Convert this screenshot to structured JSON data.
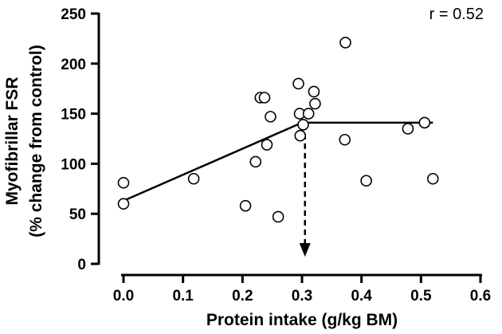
{
  "chart_data": {
    "type": "scatter",
    "title": "",
    "xlabel": "Protein intake (g/kg BM)",
    "ylabel_line1": "Myofibrillar FSR",
    "ylabel_line2": "(% change from control)",
    "xlim": [
      0.0,
      0.6
    ],
    "ylim": [
      0,
      250
    ],
    "x_ticks": [
      "0.0",
      "0.1",
      "0.2",
      "0.3",
      "0.4",
      "0.5",
      "0.6"
    ],
    "y_ticks": [
      "0",
      "50",
      "100",
      "150",
      "200",
      "250"
    ],
    "grid": false,
    "annotation": "r = 0.52",
    "points": [
      {
        "x": 0.0,
        "y": 81
      },
      {
        "x": 0.0,
        "y": 60
      },
      {
        "x": 0.118,
        "y": 85
      },
      {
        "x": 0.205,
        "y": 58
      },
      {
        "x": 0.222,
        "y": 102
      },
      {
        "x": 0.23,
        "y": 166
      },
      {
        "x": 0.237,
        "y": 166
      },
      {
        "x": 0.241,
        "y": 119
      },
      {
        "x": 0.247,
        "y": 147
      },
      {
        "x": 0.26,
        "y": 47
      },
      {
        "x": 0.294,
        "y": 180
      },
      {
        "x": 0.296,
        "y": 150
      },
      {
        "x": 0.297,
        "y": 128
      },
      {
        "x": 0.302,
        "y": 139
      },
      {
        "x": 0.311,
        "y": 150
      },
      {
        "x": 0.32,
        "y": 172
      },
      {
        "x": 0.322,
        "y": 160
      },
      {
        "x": 0.373,
        "y": 221
      },
      {
        "x": 0.372,
        "y": 124
      },
      {
        "x": 0.408,
        "y": 83
      },
      {
        "x": 0.478,
        "y": 135
      },
      {
        "x": 0.506,
        "y": 141
      },
      {
        "x": 0.52,
        "y": 85
      }
    ],
    "fit_line": [
      {
        "x": 0.0,
        "y": 63
      },
      {
        "x": 0.3,
        "y": 141
      },
      {
        "x": 0.52,
        "y": 141
      }
    ],
    "breakpoint_x": 0.305
  }
}
